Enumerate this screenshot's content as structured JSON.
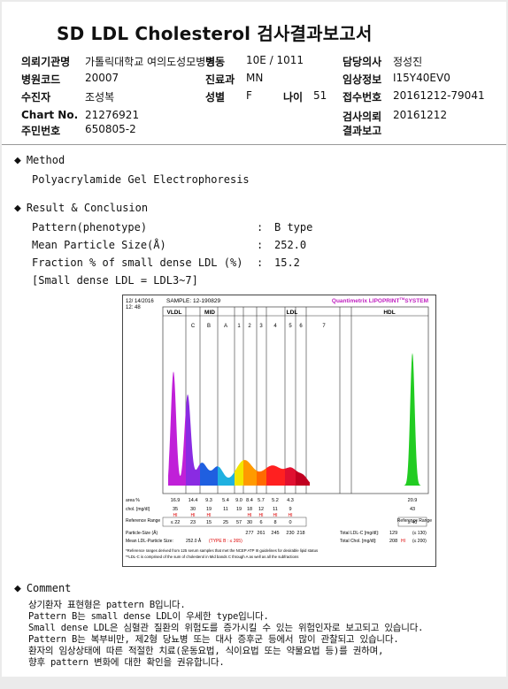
{
  "report": {
    "title": "SD LDL Cholesterol 검사결과보고서",
    "fields": {
      "institution_label": "의뢰기관명",
      "institution_value": "가톨릭대학교 여의도성모병원",
      "ward_label": "병동",
      "ward_value": "10E / 1011",
      "doctor_label": "담당의사",
      "doctor_value": "정성진",
      "hospital_code_label": "병원코드",
      "hospital_code_value": "20007",
      "dept_label": "진료과",
      "dept_value": "MN",
      "clinical_label": "임상정보",
      "clinical_value": "I15Y40EV0",
      "collector_label": "수진자",
      "collector_value": "조성복",
      "sex_label": "성별",
      "sex_value": "F",
      "age_label": "나이",
      "age_value": "51",
      "receipt_label": "접수번호",
      "receipt_value": "20161212-79041",
      "chart_label": "Chart No.",
      "chart_value": "21276921",
      "request_label": "검사의뢰",
      "request_value": "20161212",
      "rrn_label": "주민번호",
      "rrn_value": "650805-2",
      "result_report_label": "결과보고"
    }
  },
  "method": {
    "heading": "Method",
    "text": "Polyacrylamide Gel Electrophoresis"
  },
  "result": {
    "heading": "Result & Conclusion",
    "rows": [
      {
        "label": "Pattern(phenotype)",
        "sep": ":",
        "value": "B type"
      },
      {
        "label": "Mean Particle Size(Å)",
        "sep": ":",
        "value": "252.0"
      },
      {
        "label": "Fraction % of small dense LDL (%)",
        "sep": ":",
        "value": "15.2"
      }
    ],
    "note": "[Small dense LDL = LDL3~7]"
  },
  "chart_data": {
    "type": "area",
    "date": "12/ 14/2016",
    "time": "12: 48",
    "sample": "SAMPLE:  12-190829",
    "brand": "Quantimetrix LIPOPRINT",
    "brand_tm": "TM",
    "brand_suffix": "SYSTEM",
    "groups": [
      "VLDL",
      "MID",
      "LDL",
      "HDL"
    ],
    "bands": [
      "C",
      "B",
      "A",
      "1",
      "2",
      "3",
      "4",
      "5",
      "6",
      "7"
    ],
    "band_colors": {
      "VLDL": "#c020d8",
      "C": "#8a2be2",
      "B": "#1f5fe0",
      "A": "#1fb0e0",
      "1": "#f2e600",
      "2": "#ff9a00",
      "3": "#ff6a00",
      "4": "#ff2020",
      "5": "#e01030",
      "6": "#c00020",
      "HDL": "#22cc22"
    },
    "table": {
      "area_label": "area %",
      "area": [
        "16.9",
        "14.4",
        "9.3",
        "5.4",
        "9.0",
        "8.4",
        "5.7",
        "5.2",
        "4.3",
        "",
        "20.9"
      ],
      "chol_label": "chol. [mg/dl]",
      "chol": [
        "35",
        "30",
        "19",
        "11",
        "19",
        "18",
        "12",
        "11",
        "9",
        "",
        "43"
      ],
      "flags": [
        "HI",
        "HI",
        "HI",
        "",
        "",
        "HI",
        "HI",
        "HI",
        "HI",
        "",
        ""
      ],
      "ref_label": "Reference Range",
      "ref": [
        "≤ 22",
        "23",
        "15",
        "25",
        "57",
        "30",
        "6",
        "8",
        "0",
        "",
        "≥ 40"
      ],
      "ref_right_label": "Reference Range"
    },
    "particle_size_label": "Particle-Size (Å)",
    "particle_sizes": [
      "277",
      "261",
      "245",
      "230",
      "218"
    ],
    "mean_ldl_label": "Mean LDL-Particle Size:",
    "mean_ldl_value": "252.0 Å",
    "type_label": "(TYPE B : ≤ 265)",
    "total_ldl_label": "Total LDL-C [mg/dl]:",
    "total_ldl_value": "129",
    "total_ldl_ref": "(≤ 130)",
    "total_chol_label": "Total Chol. [mg/dl]:",
    "total_chol_value": "208",
    "total_chol_flag": "HI",
    "total_chol_ref": "(≤ 200)",
    "footnote1": "*Reference ranges derived from 125 serum samples that met the NCEP ATP III guidelines for desirable lipid status",
    "footnote2": "**LDL-C is comprised of the sum of cholesterol in Mid bands C through A as well as all the subfractions"
  },
  "comment": {
    "heading": "Comment",
    "lines": [
      "상기환자 표현형은 pattern B입니다.",
      "Pattern B는 small dense LDL이 우세한 type입니다.",
      "Small dense LDL은 심혈관 질환의 위험도를 증가시킬 수 있는 위험인자로 보고되고 있습니다.",
      "Pattern B는 복부비만, 제2형 당뇨병 또는 대사 증후군 등에서 많이 관찰되고 있습니다.",
      "환자의 임상상태에 따른 적절한 치료(운동요법, 식이요법 또는 약물요법 등)를 권하며,",
      "향후 pattern 변화에 대한 확인을 권유합니다."
    ]
  }
}
